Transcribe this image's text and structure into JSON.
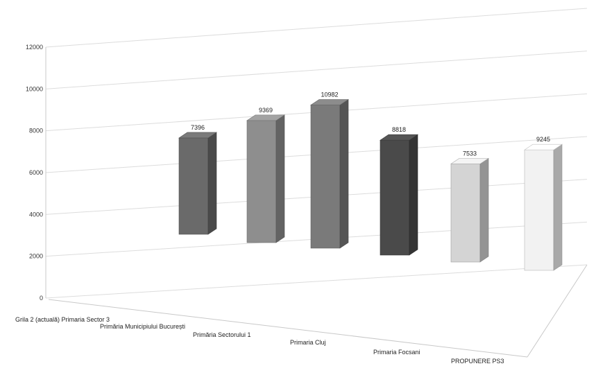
{
  "chart_data": {
    "type": "bar",
    "style": "3d-column",
    "categories": [
      "Grila 2 (actuală) Primaria Sector 3",
      "Primăria Municipiului București",
      "Primăria Sectorului 1",
      "Primaria Cluj",
      "Primaria Focsani",
      "PROPUNERE PS3"
    ],
    "values": [
      7396,
      9369,
      10982,
      8818,
      7533,
      9245
    ],
    "ylim": [
      0,
      12000
    ],
    "yticks": [
      0,
      2000,
      4000,
      6000,
      8000,
      10000,
      12000
    ],
    "title": "",
    "xlabel": "",
    "ylabel": "",
    "grid": true,
    "legend": "none",
    "colors": [
      "#6a6a6a",
      "#8e8e8e",
      "#7a7a7a",
      "#4a4a4a",
      "#d4d4d4",
      "#f2f2f2"
    ]
  }
}
